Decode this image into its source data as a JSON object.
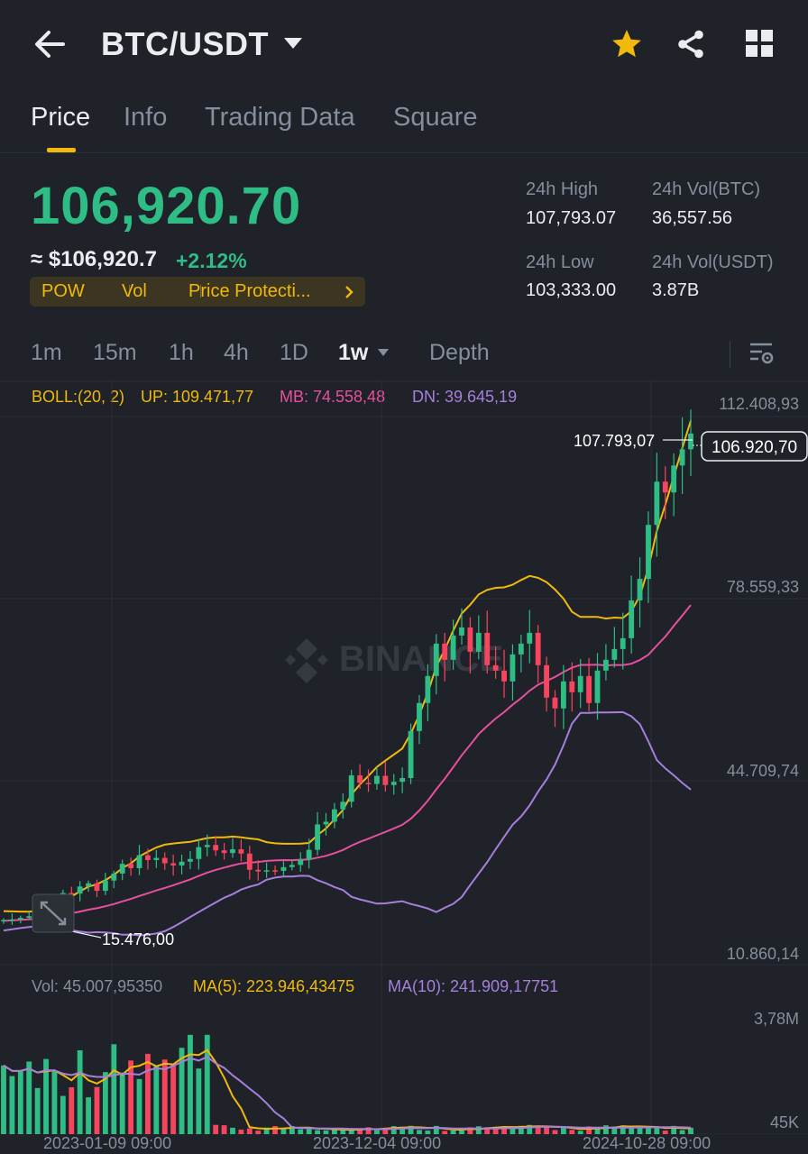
{
  "header": {
    "pair": "BTC/USDT",
    "icons": [
      "back-arrow-icon",
      "dropdown-caret-icon",
      "star-icon",
      "share-icon",
      "grid-icon"
    ],
    "star_color": "#f0b90b"
  },
  "tabs": [
    "Price",
    "Info",
    "Trading Data",
    "Square"
  ],
  "active_tab": "Price",
  "ticker": {
    "last_price": "106,920.70",
    "fiat_price": "≈ $106,920.7",
    "change_pct": "+2.12%",
    "tags": [
      "POW",
      "Vol",
      "Price Protecti..."
    ],
    "high_label": "24h High",
    "high_value": "107,793.07",
    "low_label": "24h Low",
    "low_value": "103,333.00",
    "vol_btc_label": "24h Vol(BTC)",
    "vol_btc_value": "36,557.56",
    "vol_usdt_label": "24h Vol(USDT)",
    "vol_usdt_value": "3.87B"
  },
  "intervals": [
    "1m",
    "15m",
    "1h",
    "4h",
    "1D",
    "1w",
    "Depth"
  ],
  "active_interval": "1w",
  "indicators": {
    "boll": "BOLL:(20, 2)",
    "up": "UP: 109.471,77",
    "mb": "MB: 74.558,48",
    "dn": "DN: 39.645,19",
    "vol": "Vol: 45.007,95350",
    "ma5": "MA(5): 223.946,43475",
    "ma10": "MA(10): 241.909,17751"
  },
  "price_axis": [
    "112.408,93",
    "78.559,33",
    "44.709,74",
    "10.860,14"
  ],
  "volume_axis": [
    "3,78M",
    "45K"
  ],
  "date_axis": [
    "2023-01-09 09:00",
    "2023-12-04 09:00",
    "2024-10-28 09:00"
  ],
  "chart_annotations": {
    "high_marker": "107.793,07",
    "low_marker": "15.476,00",
    "current_price_tag": "106.920,70"
  },
  "watermark": "BINANCE",
  "colors": {
    "up": "#2ebd85",
    "down": "#f6465d",
    "accent": "#f0b90b",
    "boll_up": "#f0b90b",
    "boll_mb": "#e84f9f",
    "boll_dn": "#a67fdc",
    "ma5": "#f0b90b",
    "ma10": "#a67fdc"
  },
  "chart_data": {
    "type": "candlestick",
    "interval": "1w",
    "yrange": [
      10860.14,
      112408.93
    ],
    "close_approx": [
      16800,
      16900,
      17200,
      17500,
      18400,
      19600,
      20500,
      21800,
      21700,
      23000,
      23600,
      22200,
      24100,
      25400,
      27200,
      26400,
      28800,
      27900,
      28300,
      27300,
      26900,
      27600,
      28100,
      30300,
      30700,
      29700,
      29200,
      29900,
      29100,
      26100,
      25800,
      26000,
      25900,
      26600,
      27000,
      28000,
      29800,
      34500,
      35000,
      37300,
      38700,
      43600,
      42200,
      42000,
      43500,
      41800,
      42400,
      43100,
      51800,
      57000,
      62000,
      68000,
      65000,
      69500,
      71000,
      66500,
      70000,
      64000,
      63000,
      61000,
      66000,
      68000,
      70000,
      64000,
      58000,
      56000,
      61000,
      59000,
      62000,
      57000,
      63000,
      65000,
      67000,
      69000,
      76000,
      80000,
      90000,
      98000,
      96000,
      101000,
      104000,
      106920.7
    ]
  }
}
